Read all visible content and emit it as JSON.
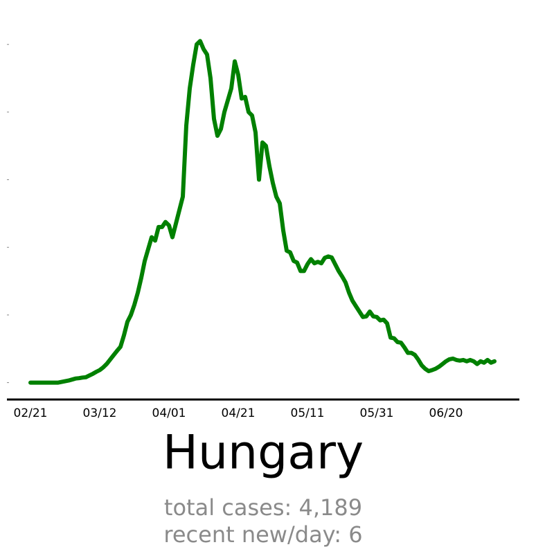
{
  "chart_data": {
    "type": "line",
    "title": "Hungary",
    "annotations": [
      "total cases: 4,189",
      "recent new/day: 6"
    ],
    "categories": [
      "02/21",
      null,
      null,
      null,
      null,
      null,
      null,
      null,
      null,
      null,
      null,
      null,
      null,
      null,
      null,
      null,
      null,
      null,
      null,
      null,
      "03/12",
      null,
      null,
      null,
      null,
      null,
      null,
      null,
      null,
      null,
      null,
      null,
      null,
      null,
      null,
      null,
      null,
      null,
      null,
      null,
      "04/01",
      null,
      null,
      null,
      null,
      null,
      null,
      null,
      null,
      null,
      null,
      null,
      null,
      null,
      null,
      null,
      null,
      null,
      null,
      null,
      "04/21",
      null,
      null,
      null,
      null,
      null,
      null,
      null,
      null,
      null,
      null,
      null,
      null,
      null,
      null,
      null,
      null,
      null,
      null,
      null,
      "05/11",
      null,
      null,
      null,
      null,
      null,
      null,
      null,
      null,
      null,
      null,
      null,
      null,
      null,
      null,
      null,
      null,
      null,
      null,
      null,
      "05/31",
      null,
      null,
      null,
      null,
      null,
      null,
      null,
      null,
      null,
      null,
      null,
      null,
      null,
      null,
      null,
      null,
      null,
      null,
      null,
      "06/20",
      null,
      null,
      null,
      null,
      null,
      null,
      null,
      null,
      null,
      null,
      null,
      null,
      null,
      null
    ],
    "values": [
      0,
      0,
      0,
      0,
      0,
      0,
      0,
      0,
      0,
      0.2,
      0.4,
      0.6,
      0.9,
      1.2,
      1.3,
      1.5,
      1.6,
      2.1,
      2.6,
      3.2,
      3.7,
      4.5,
      5.5,
      6.8,
      8.1,
      9.4,
      10.6,
      14,
      18,
      20,
      23,
      26.6,
      31,
      36,
      39.5,
      43,
      42,
      46,
      46,
      47.5,
      46.5,
      43,
      47,
      51,
      55,
      76,
      87,
      94,
      100,
      101,
      98.6,
      97,
      90,
      78,
      73,
      75,
      80,
      83.5,
      87,
      95,
      91,
      84,
      84.5,
      80,
      79,
      74,
      60,
      71,
      70,
      64,
      59,
      55,
      53,
      45,
      39,
      38.5,
      36,
      35.5,
      33,
      33,
      35,
      36.5,
      35.3,
      35.7,
      35.3,
      36.9,
      37.3,
      37,
      35,
      33,
      31.4,
      29.6,
      26.6,
      24.2,
      22.6,
      21,
      19.4,
      19.6,
      21,
      19.6,
      19.4,
      18.4,
      18.6,
      17.5,
      13.3,
      13.1,
      12,
      11.8,
      10.4,
      8.8,
      8.8,
      8.2,
      6.8,
      5.1,
      4.1,
      3.4,
      3.7,
      4.1,
      4.7,
      5.5,
      6.3,
      6.9,
      7.1,
      6.7,
      6.5,
      6.7,
      6.3,
      6.7,
      6.3,
      5.5,
      6.3,
      5.9,
      6.7,
      5.9,
      6.3
    ],
    "color": "#008000",
    "ylim": [
      -5,
      107
    ],
    "yticks": [
      0,
      20,
      40,
      60,
      80,
      100
    ]
  }
}
